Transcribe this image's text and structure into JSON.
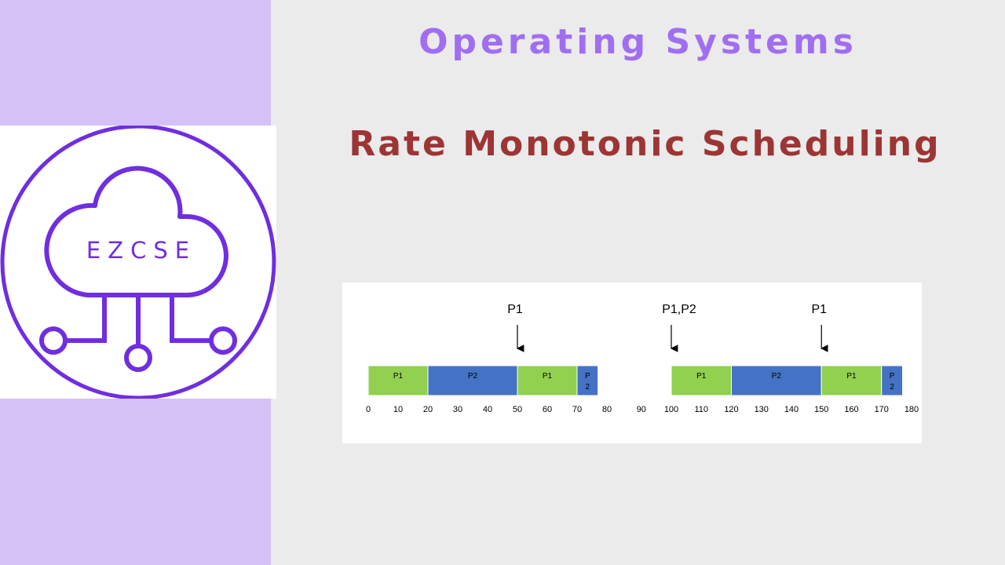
{
  "header": {
    "subject": "Operating Systems",
    "topic": "Rate Monotonic Scheduling"
  },
  "logo": {
    "text": "EZCSE",
    "icon": "cloud-network-icon",
    "color": "#6f2ee0"
  },
  "colors": {
    "sidebar": "#d4c1f8",
    "subject_title": "#a06ef2",
    "topic_title": "#9c3534",
    "p1": "#92d050",
    "p2": "#4472c4"
  },
  "chart_data": {
    "type": "gantt",
    "segments": [
      {
        "process": "P1",
        "label": "P1",
        "start": 0,
        "end": 20,
        "color": "#92d050"
      },
      {
        "process": "P2",
        "label": "P2",
        "start": 20,
        "end": 50,
        "color": "#4472c4"
      },
      {
        "process": "P1",
        "label": "P1",
        "start": 50,
        "end": 70,
        "color": "#92d050"
      },
      {
        "process": "P2",
        "label": "P 2",
        "start": 70,
        "end": 77,
        "color": "#4472c4"
      },
      {
        "process": "P1",
        "label": "P1",
        "start": 100,
        "end": 120,
        "color": "#92d050"
      },
      {
        "process": "P2",
        "label": "P2",
        "start": 120,
        "end": 150,
        "color": "#4472c4"
      },
      {
        "process": "P1",
        "label": "P1",
        "start": 150,
        "end": 170,
        "color": "#92d050"
      },
      {
        "process": "P2",
        "label": "P 2",
        "start": 170,
        "end": 177,
        "color": "#4472c4"
      }
    ],
    "ticks": [
      0,
      10,
      20,
      30,
      40,
      50,
      60,
      70,
      80,
      90,
      100,
      110,
      120,
      130,
      140,
      150,
      160,
      170,
      180
    ],
    "arrivals": [
      {
        "time": 50,
        "label": "P1"
      },
      {
        "time": 100,
        "label": "P1,P2"
      },
      {
        "time": 150,
        "label": "P1"
      }
    ]
  }
}
